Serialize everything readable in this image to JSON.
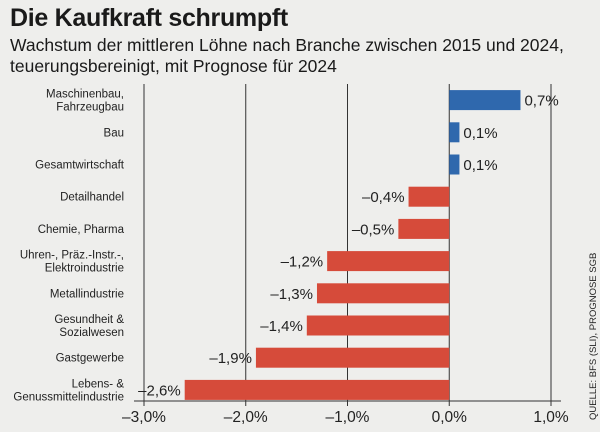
{
  "title": "Die Kaufkraft schrumpft",
  "subtitle": "Wachstum der mittleren Löhne nach Branche zwischen 2015 und 2024, teuerungsbereinigt, mit Prognose für 2024",
  "source": "QUELLE: BFS (SLI), PROGNOSE SGB",
  "colors": {
    "positive": "#2f68ad",
    "negative": "#d64b3a",
    "grid": "#333333"
  },
  "chart_data": {
    "type": "bar",
    "orientation": "horizontal",
    "categories": [
      [
        "Maschinenbau,",
        "Fahrzeugbau"
      ],
      [
        "Bau"
      ],
      [
        "Gesamtwirtschaft"
      ],
      [
        "Detailhandel"
      ],
      [
        "Chemie, Pharma"
      ],
      [
        "Uhren-, Präz.-Instr.-,",
        "Elektroindustrie"
      ],
      [
        "Metallindustrie"
      ],
      [
        "Gesundheit &",
        "Sozialwesen"
      ],
      [
        "Gastgewerbe"
      ],
      [
        "Lebens- &",
        "Genussmittelindustrie"
      ]
    ],
    "values": [
      0.7,
      0.1,
      0.1,
      -0.4,
      -0.5,
      -1.2,
      -1.3,
      -1.4,
      -1.9,
      -2.6
    ],
    "value_labels": [
      "0,7%",
      "0,1%",
      "0,1%",
      "–0,4%",
      "–0,5%",
      "–1,2%",
      "–1,3%",
      "–1,4%",
      "–1,9%",
      "–2,6%"
    ],
    "xlim": [
      -3.0,
      1.0
    ],
    "xticks": [
      -3,
      -2,
      -1,
      0,
      1
    ],
    "xtick_labels": [
      "–3,0%",
      "–2,0%",
      "–1,0%",
      "0,0%",
      "1,0%"
    ],
    "grid": true
  }
}
